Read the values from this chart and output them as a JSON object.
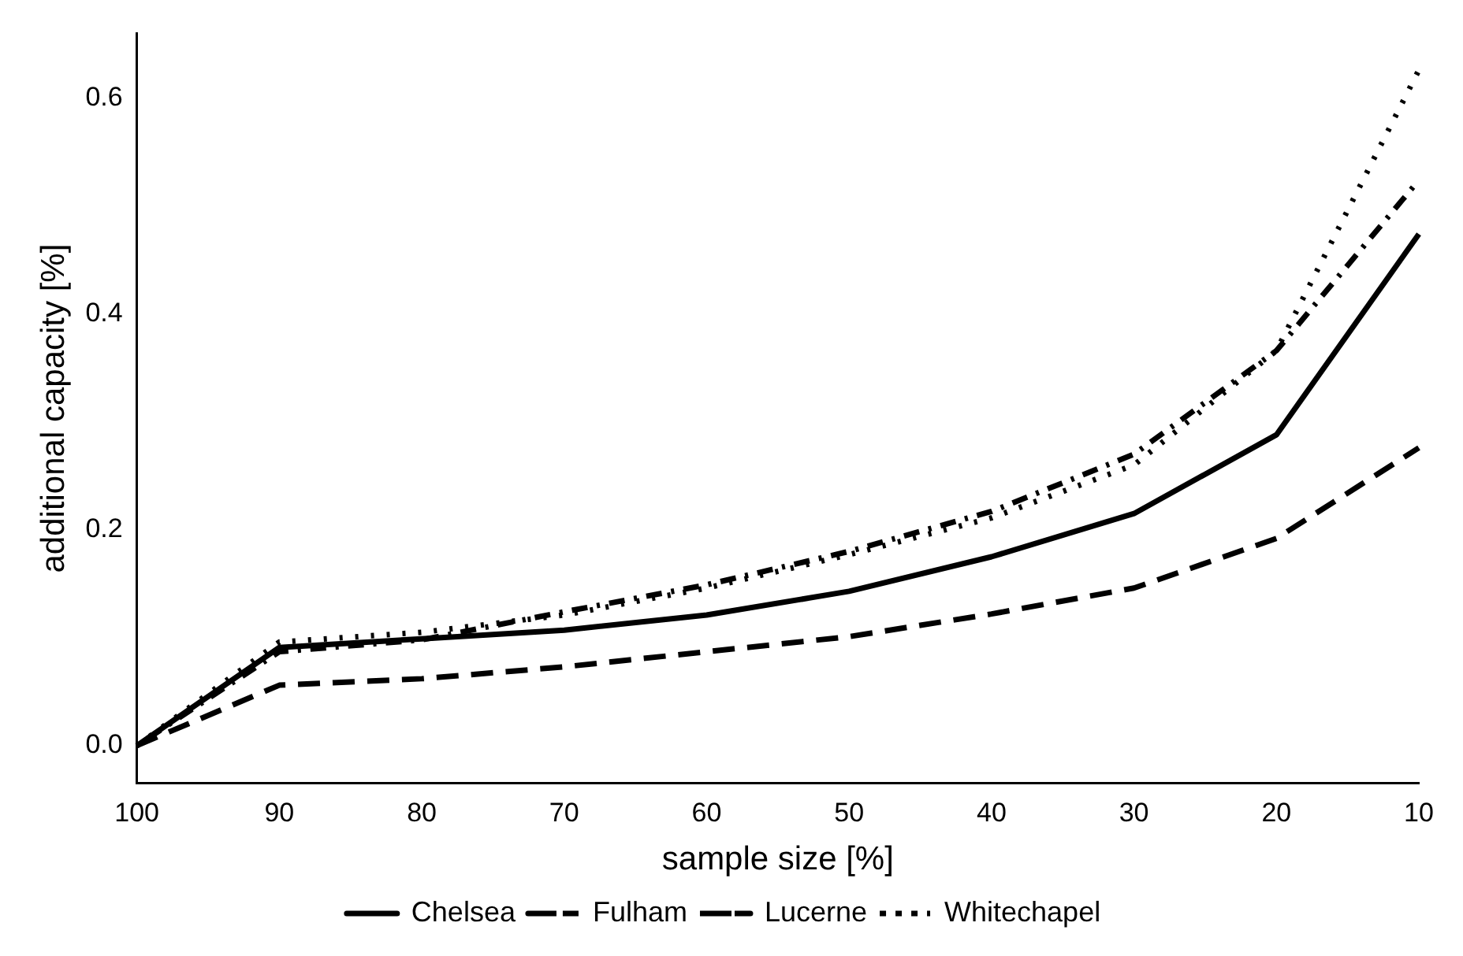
{
  "chart_data": {
    "type": "line",
    "xlabel": "sample size [%]",
    "ylabel": "additional capacity [%]",
    "categories": [
      "100",
      "90",
      "80",
      "70",
      "60",
      "50",
      "40",
      "30",
      "20",
      "10"
    ],
    "ylim": [
      -0.035,
      0.66
    ],
    "yticks": [
      {
        "value": 0,
        "label": "0.0"
      },
      {
        "value": 0.2,
        "label": "0.2"
      },
      {
        "value": 0.4,
        "label": "0.4"
      },
      {
        "value": 0.6,
        "label": "0.6"
      }
    ],
    "grid": false,
    "legend": "bottom",
    "marker": "none",
    "series": [
      {
        "name": "Chelsea",
        "color": "#000000",
        "line_style": "solid",
        "values": [
          0,
          0.091,
          0.099,
          0.107,
          0.121,
          0.143,
          0.175,
          0.215,
          0.288,
          0.474
        ]
      },
      {
        "name": "Fulham",
        "color": "#000000",
        "line_style": "dashdot",
        "values": [
          0,
          0.087,
          0.098,
          0.124,
          0.149,
          0.18,
          0.217,
          0.27,
          0.366,
          0.524
        ]
      },
      {
        "name": "Lucerne",
        "color": "#000000",
        "line_style": "dashed",
        "values": [
          0,
          0.056,
          0.062,
          0.073,
          0.087,
          0.101,
          0.122,
          0.146,
          0.192,
          0.276
        ]
      },
      {
        "name": "Whitechapel",
        "color": "#000000",
        "line_style": "dotted",
        "values": [
          0,
          0.096,
          0.105,
          0.121,
          0.146,
          0.177,
          0.211,
          0.26,
          0.366,
          0.626
        ]
      }
    ]
  }
}
